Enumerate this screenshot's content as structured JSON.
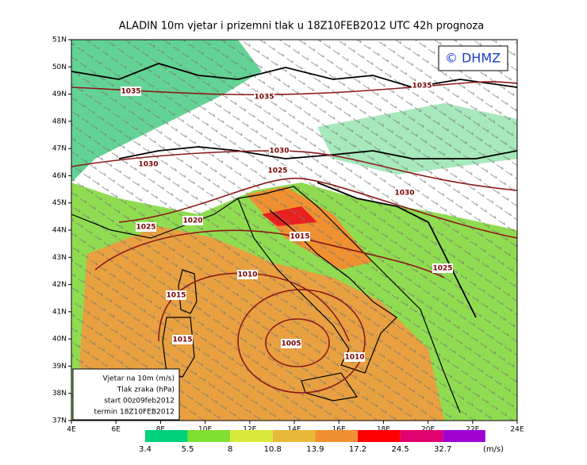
{
  "title": "ALADIN 10m vjetar i prizemni tlak u 18Z10FEB2012 UTC 42h prognoza",
  "logo": "© DHMZ",
  "lat_labels": [
    "51N",
    "50N",
    "49N",
    "48N",
    "47N",
    "46N",
    "45N",
    "44N",
    "43N",
    "42N",
    "41N",
    "40N",
    "39N",
    "38N",
    "37N"
  ],
  "lon_labels": [
    "4E",
    "6E",
    "8E",
    "10E",
    "12E",
    "14E",
    "16E",
    "18E",
    "20E",
    "22E",
    "24E"
  ],
  "isobar_labels": [
    "1035",
    "1035",
    "1035",
    "1030",
    "1030",
    "1025",
    "1030",
    "1025",
    "1020",
    "1015",
    "1025",
    "1010",
    "1015",
    "1015",
    "1005",
    "1010"
  ],
  "info_box": [
    "Vjetar na 10m (m/s)",
    "Tlak zraka (hPa)",
    "start 00z09feb2012",
    "termin 18Z10FEB2012"
  ],
  "colorbar": {
    "labels": [
      "3.4",
      "5.5",
      "8",
      "10.8",
      "13.9",
      "17.2",
      "24.5",
      "32.7"
    ],
    "colors": [
      "#00d27a",
      "#7fe030",
      "#d8e838",
      "#e8b838",
      "#f09030",
      "#ff0000",
      "#e0006e",
      "#a000d0"
    ],
    "unit": "(m/s)"
  }
}
